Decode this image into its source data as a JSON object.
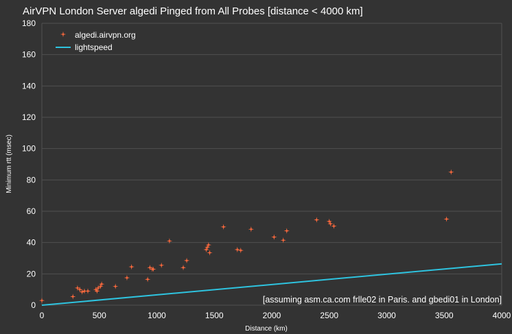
{
  "chart_data": {
    "type": "scatter",
    "title": "AirVPN London Server algedi Pinged from All Probes [distance < 4000 km]",
    "xlabel": "Distance (km)",
    "ylabel": "Minimum rtt (msec)",
    "xlim": [
      0,
      4000
    ],
    "ylim": [
      0,
      180
    ],
    "xticks": [
      0,
      500,
      1000,
      1500,
      2000,
      2500,
      3000,
      3500,
      4000
    ],
    "yticks": [
      0,
      20,
      40,
      60,
      80,
      100,
      120,
      140,
      160,
      180
    ],
    "grid": true,
    "legend": "top-left",
    "annotation": "[assuming asm.ca.com frlle02 in Paris. and gbedi01 in London]",
    "colors": {
      "points": "#ff6a3d",
      "line": "#2ec4e0",
      "background": "#333333",
      "grid": "#505050",
      "text": "#ffffff"
    },
    "series": [
      {
        "name": "algedi.airvpn.org",
        "kind": "points",
        "points": [
          [
            0,
            3
          ],
          [
            270,
            5.5
          ],
          [
            310,
            11
          ],
          [
            330,
            10
          ],
          [
            350,
            8.5
          ],
          [
            370,
            9
          ],
          [
            400,
            9
          ],
          [
            470,
            10
          ],
          [
            480,
            9
          ],
          [
            490,
            11
          ],
          [
            510,
            12
          ],
          [
            520,
            13.5
          ],
          [
            640,
            12
          ],
          [
            740,
            17.5
          ],
          [
            780,
            24.5
          ],
          [
            920,
            16.5
          ],
          [
            940,
            24
          ],
          [
            960,
            23
          ],
          [
            970,
            23
          ],
          [
            1040,
            25.5
          ],
          [
            1110,
            41
          ],
          [
            1230,
            24
          ],
          [
            1260,
            28.5
          ],
          [
            1430,
            35.5
          ],
          [
            1440,
            37
          ],
          [
            1450,
            38.5
          ],
          [
            1460,
            33.5
          ],
          [
            1580,
            50
          ],
          [
            1700,
            35.5
          ],
          [
            1730,
            35
          ],
          [
            1820,
            48.5
          ],
          [
            2020,
            43.5
          ],
          [
            2100,
            41.5
          ],
          [
            2130,
            47.5
          ],
          [
            2390,
            54.5
          ],
          [
            2500,
            53.5
          ],
          [
            2510,
            52
          ],
          [
            2540,
            50.5
          ],
          [
            3520,
            55
          ],
          [
            3560,
            85
          ]
        ]
      },
      {
        "name": "lightspeed",
        "kind": "line",
        "points": [
          [
            0,
            0
          ],
          [
            4000,
            26.4
          ]
        ]
      }
    ]
  }
}
